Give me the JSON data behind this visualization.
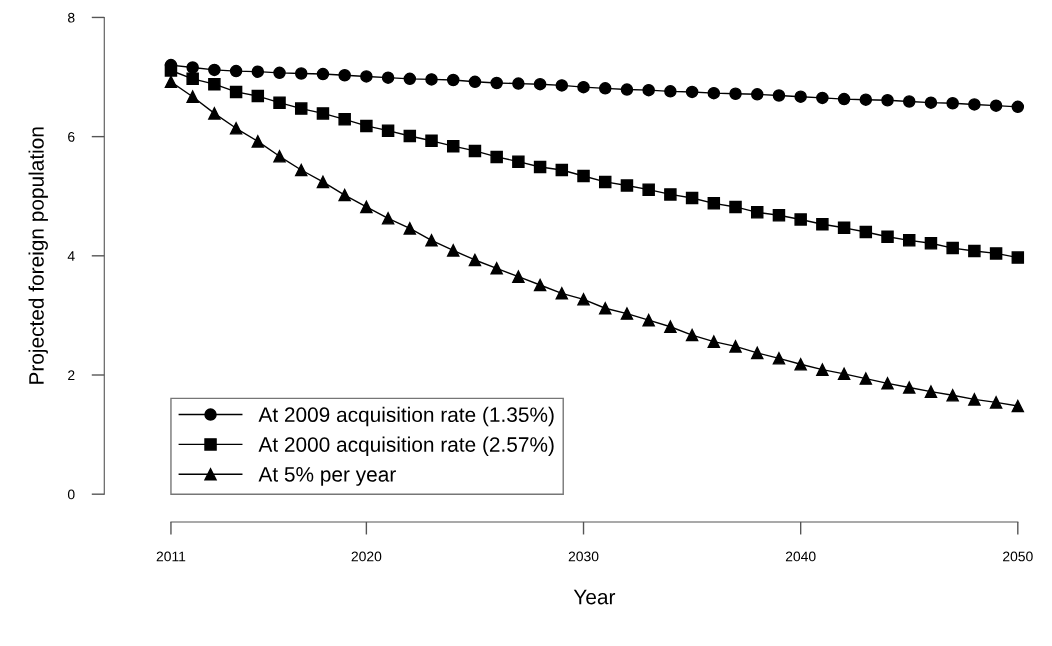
{
  "chart_data": {
    "type": "line",
    "xlabel": "Year",
    "ylabel": "Projected foreign population",
    "x": [
      2011,
      2012,
      2013,
      2014,
      2015,
      2016,
      2017,
      2018,
      2019,
      2020,
      2021,
      2022,
      2023,
      2024,
      2025,
      2026,
      2027,
      2028,
      2029,
      2030,
      2031,
      2032,
      2033,
      2034,
      2035,
      2036,
      2037,
      2038,
      2039,
      2040,
      2041,
      2042,
      2043,
      2044,
      2045,
      2046,
      2047,
      2048,
      2049,
      2050
    ],
    "series": [
      {
        "name": "At 2009 acquisition rate (1.35%)",
        "color": "#000000",
        "marker": "circle",
        "values": [
          7.2,
          7.16,
          7.12,
          7.1,
          7.09,
          7.07,
          7.06,
          7.05,
          7.03,
          7.01,
          6.99,
          6.97,
          6.96,
          6.95,
          6.92,
          6.9,
          6.89,
          6.88,
          6.86,
          6.83,
          6.81,
          6.79,
          6.78,
          6.76,
          6.75,
          6.73,
          6.72,
          6.71,
          6.69,
          6.67,
          6.65,
          6.63,
          6.62,
          6.61,
          6.59,
          6.57,
          6.56,
          6.54,
          6.52,
          6.5
        ]
      },
      {
        "name": "At 2000 acquisition rate (2.57%)",
        "color": "#000000",
        "marker": "square",
        "values": [
          7.11,
          6.97,
          6.88,
          6.75,
          6.68,
          6.57,
          6.47,
          6.39,
          6.29,
          6.18,
          6.1,
          6.01,
          5.93,
          5.84,
          5.76,
          5.66,
          5.58,
          5.49,
          5.44,
          5.34,
          5.24,
          5.18,
          5.11,
          5.03,
          4.97,
          4.88,
          4.82,
          4.73,
          4.68,
          4.61,
          4.53,
          4.47,
          4.4,
          4.32,
          4.26,
          4.21,
          4.13,
          4.08,
          4.04,
          3.97
        ]
      },
      {
        "name": "At 5% per year",
        "color": "#000000",
        "marker": "triangle",
        "values": [
          6.92,
          6.67,
          6.39,
          6.14,
          5.92,
          5.67,
          5.44,
          5.24,
          5.02,
          4.82,
          4.63,
          4.46,
          4.26,
          4.09,
          3.93,
          3.79,
          3.65,
          3.51,
          3.37,
          3.27,
          3.12,
          3.03,
          2.92,
          2.81,
          2.67,
          2.56,
          2.48,
          2.37,
          2.28,
          2.18,
          2.09,
          2.02,
          1.94,
          1.86,
          1.79,
          1.72,
          1.66,
          1.59,
          1.54,
          1.48
        ]
      }
    ],
    "xlim": [
      2011,
      2050
    ],
    "ylim": [
      0,
      8
    ],
    "xticks": [
      2011,
      2020,
      2030,
      2040,
      2050
    ],
    "yticks": [
      0,
      2,
      4,
      6,
      8
    ],
    "legend": "bottom left",
    "grid": false,
    "line_style": "solid"
  }
}
